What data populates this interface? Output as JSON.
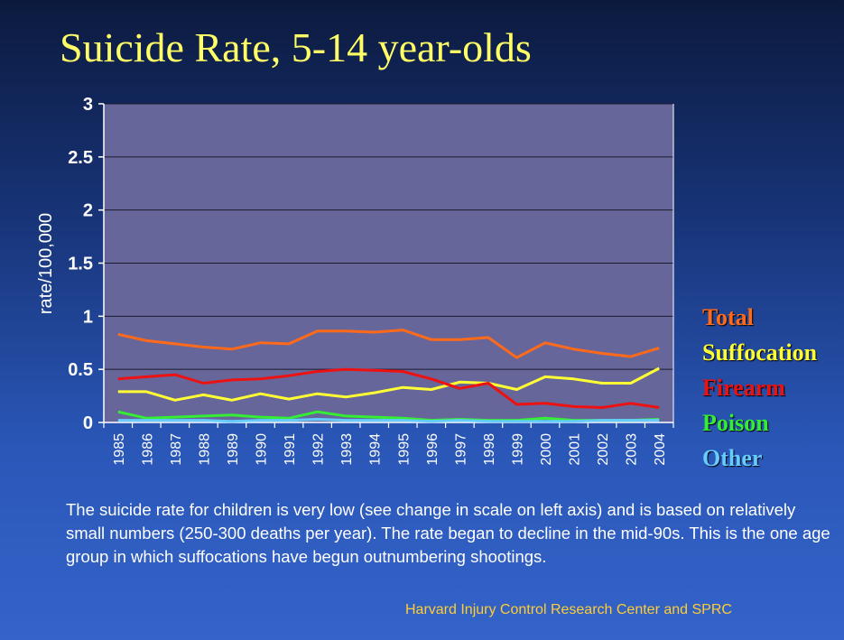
{
  "title": "Suicide Rate, 5-14 year-olds",
  "caption": "The suicide rate for children is very low (see change in scale on left axis) and is based on relatively small numbers (250-300 deaths per year). The rate began to decline in the mid-90s. This is the one age group in which suffocations have begun outnumbering shootings.",
  "source": "Harvard Injury Control Research Center and SPRC",
  "chart_data": {
    "type": "line",
    "title": "",
    "xlabel": "",
    "ylabel": "rate/100,000",
    "ylim": [
      0,
      3
    ],
    "yticks": [
      "0",
      "0.5",
      "1",
      "1.5",
      "2",
      "2.5",
      "3"
    ],
    "grid": true,
    "legend_position": "right",
    "plot_background": "#67669a",
    "x": [
      "1985",
      "1986",
      "1987",
      "1988",
      "1989",
      "1990",
      "1991",
      "1992",
      "1993",
      "1994",
      "1995",
      "1996",
      "1997",
      "1998",
      "1999",
      "2000",
      "2001",
      "2002",
      "2003",
      "2004"
    ],
    "series": [
      {
        "name": "Total",
        "color": "#ff6a1a",
        "values": [
          0.83,
          0.77,
          0.74,
          0.71,
          0.69,
          0.75,
          0.74,
          0.86,
          0.86,
          0.85,
          0.87,
          0.78,
          0.78,
          0.8,
          0.61,
          0.75,
          0.69,
          0.65,
          0.62,
          0.7
        ]
      },
      {
        "name": "Suffocation",
        "color": "#ffff33",
        "values": [
          0.29,
          0.29,
          0.21,
          0.26,
          0.21,
          0.27,
          0.22,
          0.27,
          0.24,
          0.28,
          0.33,
          0.31,
          0.38,
          0.37,
          0.31,
          0.43,
          0.41,
          0.37,
          0.37,
          0.51
        ]
      },
      {
        "name": "Firearm",
        "color": "#ee1111",
        "values": [
          0.41,
          0.43,
          0.45,
          0.37,
          0.4,
          0.41,
          0.44,
          0.48,
          0.5,
          0.49,
          0.48,
          0.41,
          0.32,
          0.37,
          0.17,
          0.18,
          0.15,
          0.14,
          0.18,
          0.14
        ]
      },
      {
        "name": "Poison",
        "color": "#33ee33",
        "values": [
          0.1,
          0.04,
          0.05,
          0.06,
          0.07,
          0.05,
          0.04,
          0.1,
          0.06,
          0.05,
          0.04,
          0.02,
          0.03,
          0.02,
          0.02,
          0.04,
          0.02,
          0.02,
          0.02,
          0.03
        ]
      },
      {
        "name": "Other",
        "color": "#66ccff",
        "values": [
          0.02,
          0.02,
          0.02,
          0.02,
          0.01,
          0.02,
          0.02,
          0.03,
          0.02,
          0.02,
          0.02,
          0.01,
          0.02,
          0.01,
          0.01,
          0.01,
          0.01,
          0.02,
          0.02,
          0.02
        ]
      }
    ]
  }
}
